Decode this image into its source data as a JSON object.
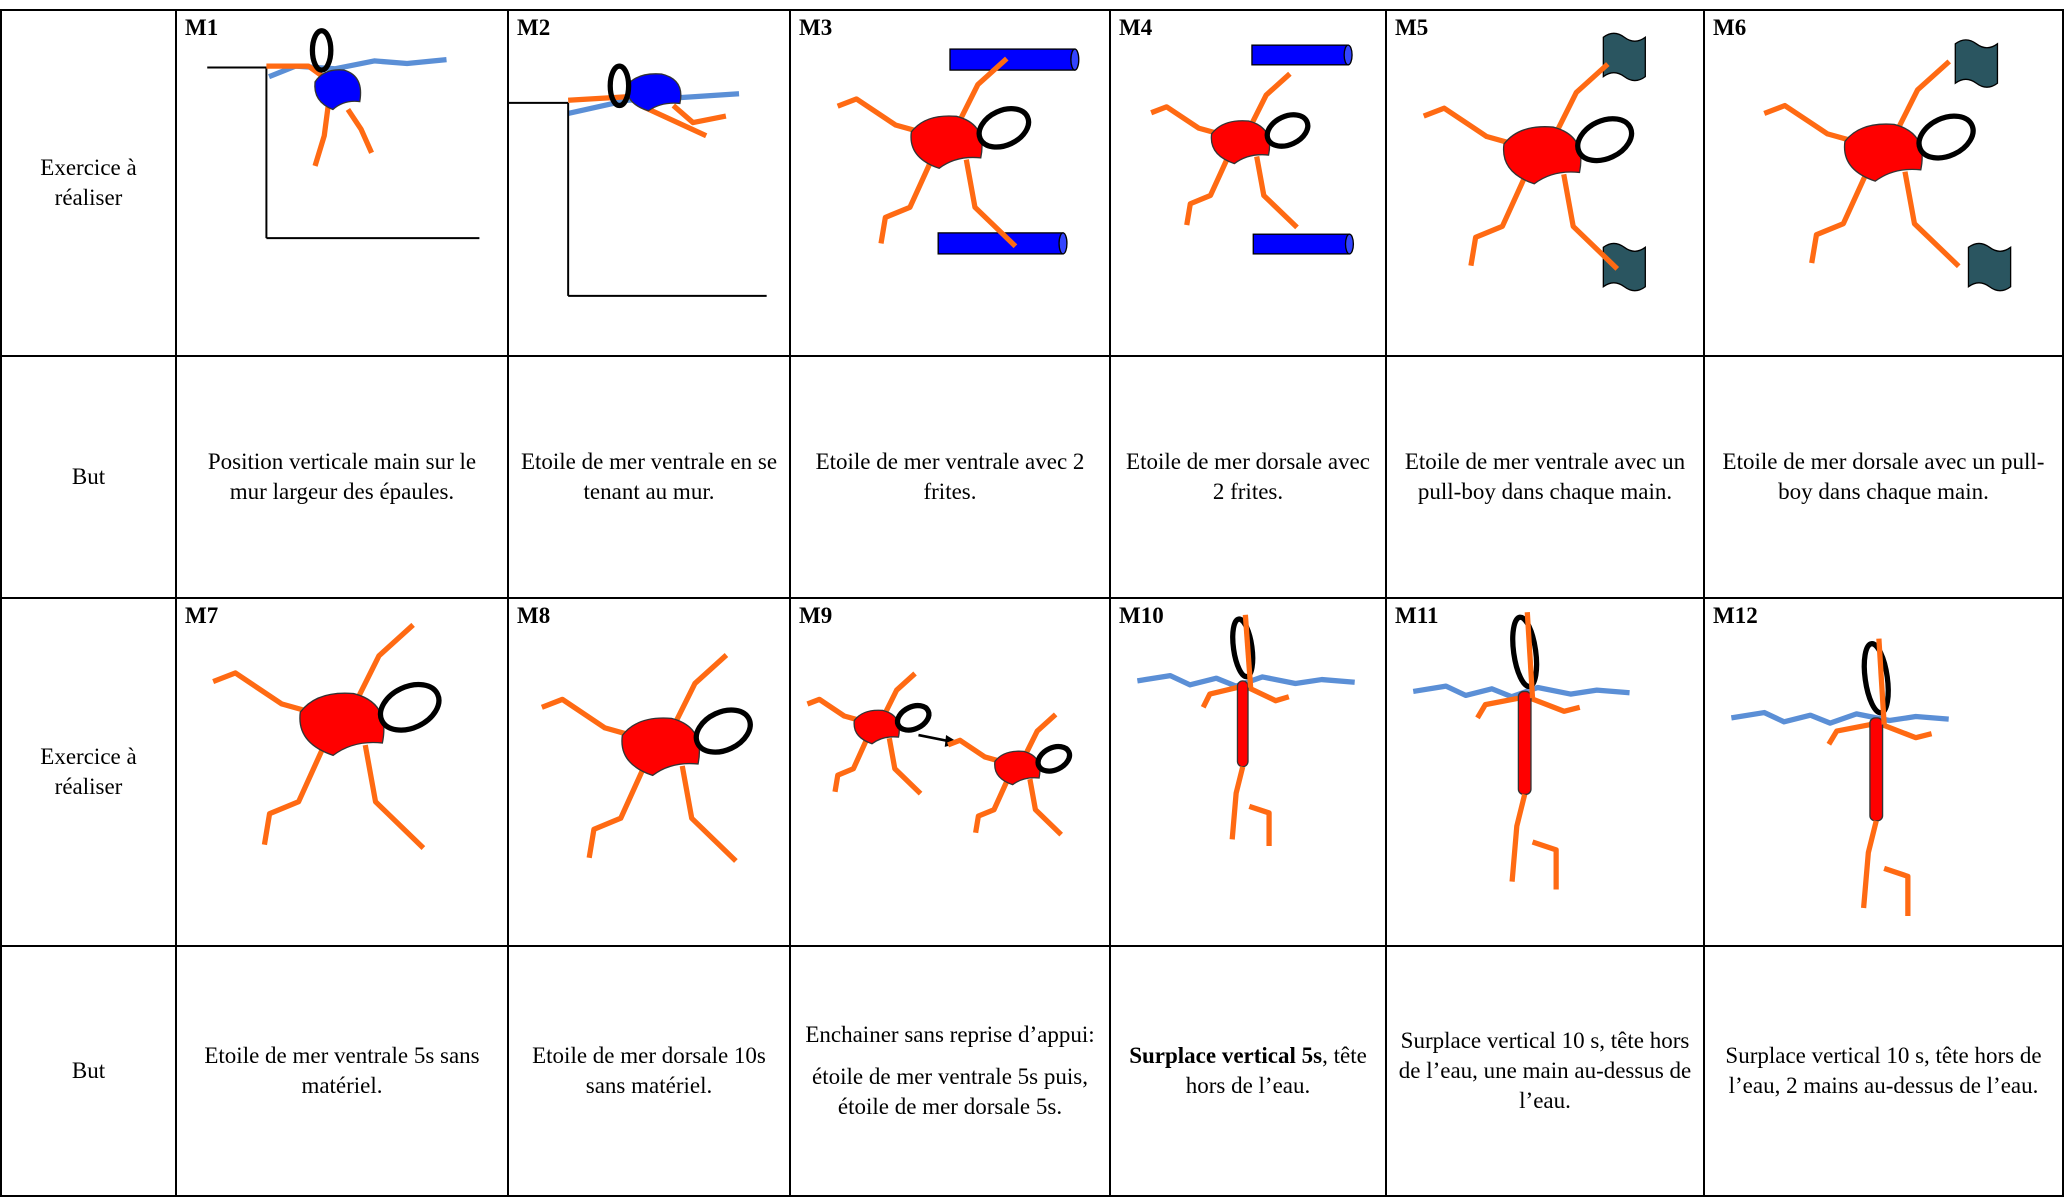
{
  "rows": [
    {
      "label": "Exercice à réaliser",
      "cells": [
        "M1",
        "M2",
        "M3",
        "M4",
        "M5",
        "M6"
      ]
    },
    {
      "label": "But",
      "cells": [
        "Position verticale main sur le mur largeur des épaules.",
        "Etoile de mer ventrale en se tenant au mur.",
        "Etoile de mer ventrale avec 2 frites.",
        "Etoile de mer dorsale avec 2 frites.",
        "Etoile de mer ventrale avec un pull-boy dans chaque main.",
        "Etoile de mer dorsale avec un pull-boy dans chaque main."
      ]
    },
    {
      "label": "Exercice à réaliser",
      "cells": [
        "M7",
        "M8",
        "M9",
        "M10",
        "M11",
        "M12"
      ]
    },
    {
      "label": "But",
      "cells": [
        "Etoile de mer ventrale 5s sans matériel.",
        "Etoile de mer dorsale 10s sans matériel.",
        [
          "Enchainer sans reprise d’appui:",
          "étoile de mer ventrale 5s puis, étoile de mer dorsale 5s."
        ],
        {
          "bold": "Surplace vertical 5s",
          "text": ", tête hors de l’eau."
        },
        "Surplace vertical 10 s, tête hors de l’eau, une main au-dessus de l’eau.",
        "Surplace vertical 10 s, tête hors de l’eau, 2 mains au-dessus de l’eau."
      ]
    }
  ]
}
